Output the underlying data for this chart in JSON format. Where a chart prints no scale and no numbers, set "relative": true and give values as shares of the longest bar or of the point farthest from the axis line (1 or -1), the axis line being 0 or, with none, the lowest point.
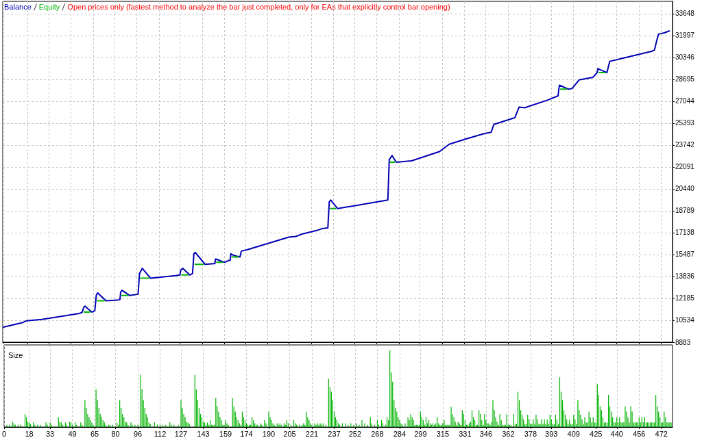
{
  "chart_data": [
    {
      "type": "line",
      "annotations": [
        "Open prices only (fastest method to analyze the bar just completed, only for EAs that explicitly control bar opening)"
      ],
      "x": [
        0,
        14,
        17,
        28,
        55,
        57,
        58,
        59,
        61,
        64,
        66,
        67,
        68,
        72,
        74,
        82,
        84,
        84.5,
        85.5,
        91,
        97,
        98,
        100,
        106,
        124,
        127,
        127.5,
        129,
        134,
        136,
        137,
        138,
        145,
        151,
        152,
        152.5,
        154,
        159,
        162,
        163,
        163.5,
        165,
        170,
        171,
        175,
        205,
        210,
        215,
        225,
        229,
        233,
        234,
        235,
        240,
        254,
        276,
        277,
        279,
        282,
        293,
        313,
        320,
        332,
        345,
        350,
        352,
        367,
        370,
        374,
        391,
        398,
        398.5,
        399,
        405.5,
        408,
        413,
        423,
        426,
        426.5,
        433,
        435,
        445,
        465,
        467,
        469,
        470,
        474,
        478
      ],
      "series": [
        {
          "name": "Balance",
          "color": "#0000b4",
          "values": [
            10000,
            10350,
            10500,
            10600,
            11050,
            11150,
            11500,
            11600,
            11400,
            11150,
            11250,
            12400,
            12600,
            12200,
            12000,
            12050,
            12100,
            12650,
            12800,
            12400,
            12500,
            14050,
            14450,
            13700,
            13900,
            13950,
            14300,
            14450,
            13950,
            14050,
            15550,
            15650,
            14750,
            14800,
            14800,
            15150,
            15100,
            14900,
            15050,
            15050,
            15550,
            15450,
            15300,
            15750,
            15850,
            16800,
            16850,
            17050,
            17300,
            17450,
            17500,
            19450,
            19600,
            18950,
            19200,
            19600,
            22650,
            22950,
            22450,
            22550,
            23250,
            23800,
            24200,
            24600,
            24700,
            25300,
            25800,
            26600,
            26550,
            27150,
            27450,
            27950,
            28250,
            27950,
            28000,
            28650,
            28850,
            29200,
            29500,
            29200,
            30050,
            30300,
            30800,
            30900,
            31750,
            32100,
            32200,
            32350
          ]
        },
        {
          "name": "Equity",
          "color": "#00b400",
          "x": [
            58,
            63,
            63.5,
            67.5,
            73,
            73.5,
            85,
            90,
            90.5,
            98.5,
            105,
            105.5,
            128,
            133,
            133.5,
            137.5,
            144,
            144.5,
            153,
            158,
            158.5,
            164,
            169,
            169.5,
            234.5,
            239,
            239.5,
            277.5,
            281,
            281.5,
            399.5,
            404.5,
            405,
            427,
            432
          ],
          "values": [
            11150,
            11150,
            null,
            12000,
            12000,
            null,
            12400,
            12400,
            null,
            13700,
            13700,
            null,
            13950,
            13950,
            null,
            14750,
            14750,
            null,
            14900,
            14900,
            null,
            15300,
            15300,
            null,
            18950,
            18950,
            null,
            22450,
            22450,
            null,
            27950,
            27950,
            null,
            29200,
            29200
          ]
        }
      ],
      "xlim": [
        0,
        480
      ],
      "xticks": [
        0,
        18,
        33,
        49,
        65,
        80,
        96,
        112,
        127,
        143,
        159,
        174,
        190,
        205,
        221,
        237,
        252,
        268,
        284,
        299,
        315,
        331,
        346,
        362,
        378,
        393,
        409,
        425,
        440,
        456,
        472
      ],
      "ylim": [
        8883,
        34570
      ],
      "yticks": [
        8883,
        10534,
        12185,
        13836,
        15487,
        17138,
        18789,
        20440,
        22091,
        23742,
        25393,
        27044,
        28695,
        30346,
        31997,
        33648
      ],
      "grid": true,
      "legend": "top left",
      "tick_labels": "y",
      "marker": "none"
    },
    {
      "type": "bar",
      "title": "Size",
      "relative": true,
      "color": "#00b400",
      "x": [
        2,
        4,
        6,
        7,
        8,
        10,
        12,
        15,
        16,
        17,
        18,
        19,
        21,
        22,
        24,
        26,
        30,
        31,
        33,
        34,
        36,
        37,
        39,
        40,
        41,
        42,
        44,
        45,
        47,
        48,
        49,
        51,
        52,
        55,
        56,
        58,
        59,
        60,
        61,
        62,
        63,
        64,
        66,
        67,
        68,
        69,
        70,
        71,
        72,
        73,
        75,
        76,
        78,
        81,
        82,
        83,
        84,
        85,
        86,
        87,
        88,
        89,
        91,
        92,
        94,
        96,
        98,
        99,
        100,
        101,
        102,
        103,
        104,
        105,
        108,
        110,
        112,
        114,
        116,
        119,
        120,
        122,
        125,
        127,
        128,
        129,
        130,
        131,
        132,
        133,
        137,
        138,
        139,
        140,
        141,
        142,
        143,
        144,
        145,
        146,
        147,
        148,
        149,
        150,
        151,
        152,
        153,
        154,
        155,
        156,
        157,
        158,
        159,
        160,
        161,
        164,
        165,
        166,
        167,
        168,
        169,
        170,
        171,
        172,
        173,
        174,
        175,
        176,
        177,
        178,
        179,
        180,
        181,
        182,
        184,
        185,
        187,
        188,
        190,
        191,
        192,
        193,
        194,
        196,
        197,
        198,
        199,
        201,
        202,
        203,
        204,
        206,
        208,
        209,
        210,
        212,
        214,
        215,
        216,
        217,
        218,
        219,
        220,
        221,
        223,
        224,
        225,
        226,
        227,
        228,
        229,
        231,
        233,
        234,
        235,
        236,
        237,
        238,
        239,
        240,
        241,
        243,
        245,
        247,
        249,
        251,
        253,
        255,
        257,
        259,
        261,
        263,
        264,
        266,
        268,
        269,
        271,
        272,
        274,
        275,
        276,
        277,
        278,
        279,
        280,
        281,
        282,
        283,
        284,
        285,
        286,
        288,
        290,
        291,
        292,
        293,
        294,
        295,
        296,
        297,
        298,
        299,
        300,
        301,
        302,
        303,
        304,
        305,
        306,
        307,
        308,
        309,
        310,
        311,
        312,
        313,
        314,
        315,
        316,
        317,
        318,
        319,
        320,
        321,
        322,
        323,
        324,
        325,
        326,
        327,
        328,
        329,
        330,
        331,
        332,
        333,
        334,
        335,
        336,
        337,
        338,
        339,
        340,
        341,
        342,
        343,
        344,
        345,
        346,
        347,
        348,
        349,
        350,
        351,
        352,
        353,
        354,
        355,
        356,
        357,
        358,
        359,
        360,
        361,
        362,
        363,
        364,
        366,
        367,
        368,
        369,
        370,
        371,
        372,
        373,
        374,
        375,
        376,
        377,
        378,
        379,
        380,
        381,
        382,
        383,
        384,
        385,
        386,
        387,
        388,
        389,
        390,
        391,
        392,
        393,
        394,
        395,
        396,
        397,
        398,
        399,
        400,
        401,
        402,
        403,
        404,
        405,
        406,
        407,
        408,
        409,
        410,
        411,
        412,
        413,
        414,
        415,
        416,
        417,
        418,
        419,
        420,
        421,
        422,
        423,
        424,
        425,
        426,
        427,
        428,
        429,
        430,
        431,
        432,
        433,
        434,
        435,
        436,
        437,
        438,
        439,
        440,
        441,
        442,
        443,
        444,
        445,
        446,
        447,
        448,
        449,
        450,
        451,
        452,
        453,
        454,
        455,
        456,
        457,
        458,
        459,
        460,
        461,
        462,
        463,
        464,
        465,
        466,
        467,
        468,
        469,
        470,
        471,
        472,
        473,
        474,
        475,
        476,
        477,
        478,
        479
      ],
      "values": [
        0.03,
        0.03,
        0.07,
        0.05,
        0.03,
        0.03,
        0.03,
        0.17,
        0.13,
        0.07,
        0.06,
        0.04,
        0.06,
        0.03,
        0.03,
        0.03,
        0.06,
        0.03,
        0.06,
        0.03,
        0.01,
        0.01,
        0.13,
        0.07,
        0.06,
        0.03,
        0.06,
        0.03,
        0.07,
        0.06,
        0.03,
        0.06,
        0.03,
        0.06,
        0.03,
        0.35,
        0.25,
        0.17,
        0.13,
        0.09,
        0.06,
        0.03,
        0.49,
        0.35,
        0.25,
        0.17,
        0.13,
        0.09,
        0.06,
        0.03,
        0.03,
        0.03,
        0.03,
        0.06,
        0.03,
        0.35,
        0.25,
        0.17,
        0.13,
        0.07,
        0.06,
        0.03,
        0.06,
        0.03,
        0.03,
        0.03,
        0.68,
        0.49,
        0.35,
        0.25,
        0.17,
        0.13,
        0.06,
        0.04,
        0.06,
        0.03,
        0.03,
        0.03,
        0.03,
        0.06,
        0.03,
        0.03,
        0.03,
        0.35,
        0.25,
        0.17,
        0.13,
        0.07,
        0.06,
        0.04,
        0.68,
        0.49,
        0.35,
        0.25,
        0.17,
        0.13,
        0.07,
        0.06,
        0.03,
        0.06,
        0.03,
        0.09,
        0.03,
        0.03,
        0.03,
        0.38,
        0.27,
        0.2,
        0.13,
        0.09,
        0.03,
        0.03,
        0.09,
        0.05,
        0.03,
        0.38,
        0.27,
        0.2,
        0.13,
        0.09,
        0.05,
        0.03,
        0.2,
        0.13,
        0.09,
        0.05,
        0.03,
        0.03,
        0.03,
        0.13,
        0.09,
        0.05,
        0.03,
        0.03,
        0.05,
        0.03,
        0.09,
        0.05,
        0.2,
        0.13,
        0.09,
        0.05,
        0.03,
        0.05,
        0.03,
        0.05,
        0.03,
        0.05,
        0.03,
        0.09,
        0.05,
        0.03,
        0.09,
        0.05,
        0.03,
        0.03,
        0.03,
        0.05,
        0.03,
        0.2,
        0.13,
        0.09,
        0.05,
        0.03,
        0.05,
        0.03,
        0.05,
        0.03,
        0.05,
        0.03,
        0.05,
        0.03,
        0.63,
        0.52,
        0.46,
        0.35,
        0.2,
        0.13,
        0.09,
        0.05,
        0.03,
        0.05,
        0.05,
        0.03,
        0.05,
        0.03,
        0.05,
        0.03,
        0.09,
        0.05,
        0.03,
        0.13,
        0.05,
        0.03,
        0.09,
        0.03,
        0.09,
        0.05,
        0.03,
        0.13,
        0.09,
        1,
        0.71,
        0.59,
        0.35,
        0.25,
        0.2,
        0.13,
        0.09,
        0.05,
        0.03,
        0.05,
        0.13,
        0.09,
        0.17,
        0.13,
        0.09,
        0.03,
        0.03,
        0.03,
        0.03,
        0.2,
        0.13,
        0.09,
        0.03,
        0.13,
        0.05,
        0.09,
        0.05,
        0.03,
        0.05,
        0.03,
        0.05,
        0.13,
        0.05,
        0.03,
        0.03,
        0.05,
        0.09,
        0.03,
        0.03,
        0.03,
        0.03,
        0.26,
        0.17,
        0.13,
        0.07,
        0.03,
        0.07,
        0.05,
        0.03,
        0.22,
        0.17,
        0.09,
        0.03,
        0.03,
        0.05,
        0.07,
        0.22,
        0.13,
        0.09,
        0.03,
        0.03,
        0.22,
        0.17,
        0.09,
        0.03,
        0.17,
        0.09,
        0.05,
        0.05,
        0.03,
        0.07,
        0.35,
        0.22,
        0.13,
        0.07,
        0.03,
        0.17,
        0.09,
        0.03,
        0.03,
        0.03,
        0.17,
        0.03,
        0.03,
        0.03,
        0.17,
        0.04,
        0.04,
        0.46,
        0.35,
        0.22,
        0.16,
        0.1,
        0.04,
        0.04,
        0.16,
        0.1,
        0.04,
        0.04,
        0.1,
        0.04,
        0.16,
        0.1,
        0.04,
        0.04,
        0.1,
        0.04,
        0.1,
        0.04,
        0.1,
        0.04,
        0.16,
        0.1,
        0.04,
        0.04,
        0.16,
        0.1,
        0.04,
        0.65,
        0.46,
        0.35,
        0.22,
        0.16,
        0.1,
        0.04,
        0.1,
        0.04,
        0.04,
        0.16,
        0.1,
        0.04,
        0.35,
        0.22,
        0.16,
        0.1,
        0.04,
        0.13,
        0.06,
        0.06,
        0.2,
        0.13,
        0.06,
        0.13,
        0.06,
        0.06,
        0.56,
        0.42,
        0.27,
        0.22,
        0.13,
        0.06,
        0.06,
        0.06,
        0.42,
        0.27,
        0.2,
        0.13,
        0.06,
        0.06,
        0.13,
        0.06,
        0.13,
        0.06,
        0.06,
        0.06,
        0.27,
        0.2,
        0.13,
        0.06,
        0.27,
        0.2,
        0.06,
        0.06,
        0.06,
        0.06,
        0.13,
        0.06,
        0.13,
        0.06,
        0.13,
        0.06,
        0.06,
        0.06,
        0.06,
        0.06,
        0.06,
        0.06,
        0.42,
        0.27,
        0.2,
        0.13,
        0.06,
        0.06,
        0.2,
        0.13,
        0.06,
        0.06,
        0.06,
        0.06
      ],
      "xlim": [
        0,
        480
      ],
      "xticks": [
        0,
        18,
        33,
        49,
        65,
        80,
        96,
        112,
        127,
        143,
        159,
        174,
        190,
        205,
        221,
        237,
        252,
        268,
        284,
        299,
        315,
        331,
        346,
        362,
        378,
        393,
        409,
        425,
        440,
        456,
        472
      ],
      "grid": "x",
      "tick_labels": "x"
    }
  ]
}
